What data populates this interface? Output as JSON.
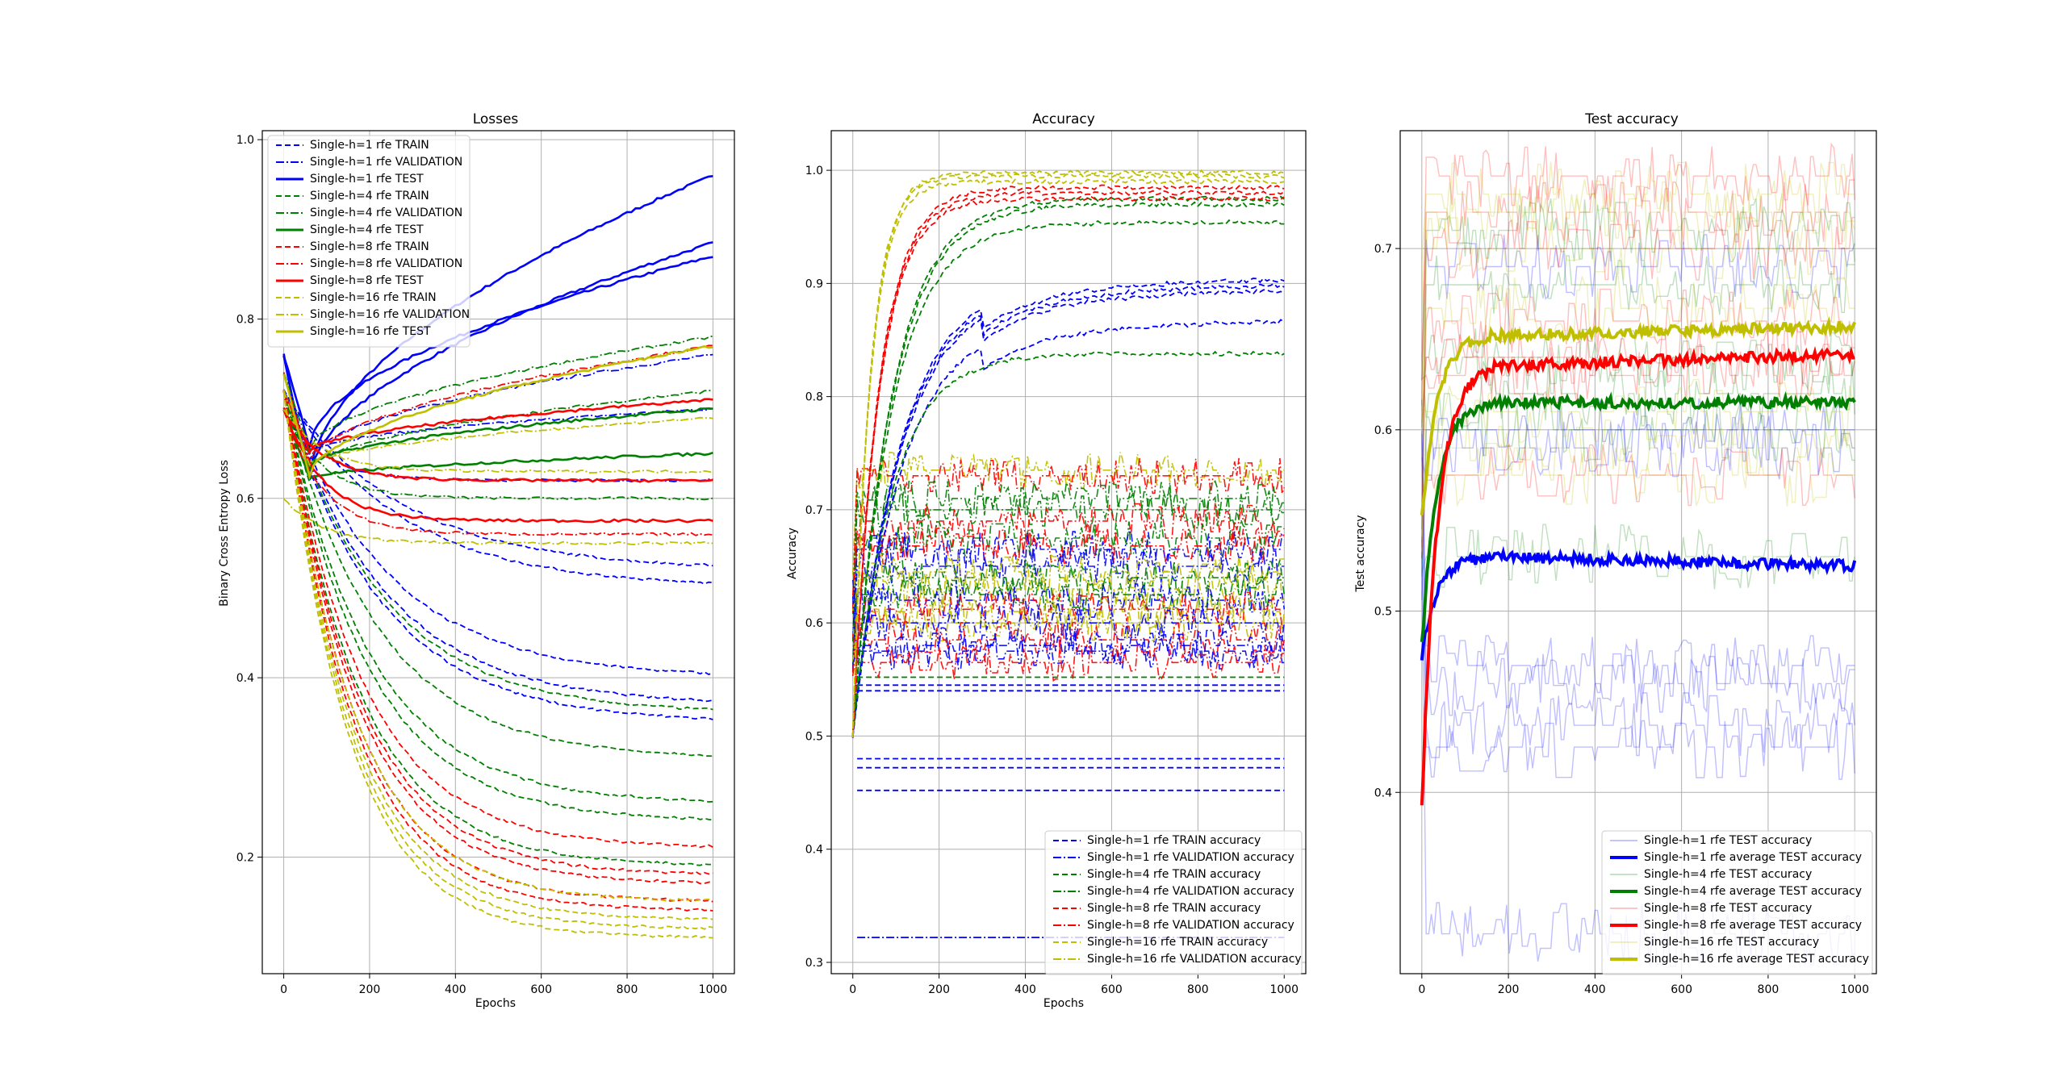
{
  "colors": {
    "h1": "#0000ff",
    "h4": "#008000",
    "h8": "#ff0000",
    "h16": "#bfbf00",
    "grid": "#b0b0b0",
    "frame": "#000000"
  },
  "chart_data": [
    {
      "type": "line",
      "title": "Losses",
      "xlabel": "Epochs",
      "ylabel": "Binary Cross Entropy Loss",
      "xlim": [
        -50,
        1050
      ],
      "ylim": [
        0.07,
        1.01
      ],
      "xticks": [
        0,
        200,
        400,
        600,
        800,
        1000
      ],
      "yticks": [
        0.2,
        0.4,
        0.6,
        0.8,
        1.0
      ],
      "xtick_labels": [
        "0",
        "200",
        "400",
        "600",
        "800",
        "1000"
      ],
      "ytick_labels": [
        "0.2",
        "0.4",
        "0.6",
        "0.8",
        "1.0"
      ],
      "grid": true,
      "legend_position": "upper-left",
      "legend": [
        "Single-h=1 rfe TRAIN",
        "Single-h=1 rfe VALIDATION",
        "Single-h=1 rfe TEST",
        "Single-h=4 rfe TRAIN",
        "Single-h=4 rfe VALIDATION",
        "Single-h=4 rfe TEST",
        "Single-h=8 rfe TRAIN",
        "Single-h=8 rfe VALIDATION",
        "Single-h=8 rfe TEST",
        "Single-h=16 rfe TRAIN",
        "Single-h=16 rfe VALIDATION",
        "Single-h=16 rfe TEST"
      ],
      "series": [
        {
          "group": "h1",
          "kind": "test",
          "start": 0.76,
          "end": 0.96
        },
        {
          "group": "h1",
          "kind": "test",
          "start": 0.76,
          "end": 0.885
        },
        {
          "group": "h1",
          "kind": "test",
          "start": 0.76,
          "end": 0.87
        },
        {
          "group": "h1",
          "kind": "val",
          "start": 0.74,
          "end": 0.76
        },
        {
          "group": "h1",
          "kind": "val",
          "start": 0.72,
          "end": 0.7
        },
        {
          "group": "h1",
          "kind": "val",
          "start": 0.7,
          "end": 0.62
        },
        {
          "group": "h1",
          "kind": "train",
          "start": 0.72,
          "end": 0.52
        },
        {
          "group": "h1",
          "kind": "train",
          "start": 0.72,
          "end": 0.5
        },
        {
          "group": "h1",
          "kind": "train",
          "start": 0.72,
          "end": 0.4
        },
        {
          "group": "h1",
          "kind": "train",
          "start": 0.72,
          "end": 0.37
        },
        {
          "group": "h1",
          "kind": "train",
          "start": 0.72,
          "end": 0.35
        },
        {
          "group": "h4",
          "kind": "val",
          "start": 0.74,
          "end": 0.78
        },
        {
          "group": "h4",
          "kind": "val",
          "start": 0.72,
          "end": 0.72
        },
        {
          "group": "h4",
          "kind": "test",
          "start": 0.72,
          "end": 0.7
        },
        {
          "group": "h4",
          "kind": "test",
          "start": 0.7,
          "end": 0.65
        },
        {
          "group": "h4",
          "kind": "val",
          "start": 0.7,
          "end": 0.6
        },
        {
          "group": "h4",
          "kind": "train",
          "start": 0.72,
          "end": 0.36
        },
        {
          "group": "h4",
          "kind": "train",
          "start": 0.72,
          "end": 0.31
        },
        {
          "group": "h4",
          "kind": "train",
          "start": 0.72,
          "end": 0.26
        },
        {
          "group": "h4",
          "kind": "train",
          "start": 0.72,
          "end": 0.24
        },
        {
          "group": "h4",
          "kind": "train",
          "start": 0.72,
          "end": 0.19
        },
        {
          "group": "h8",
          "kind": "val",
          "start": 0.74,
          "end": 0.77
        },
        {
          "group": "h8",
          "kind": "test",
          "start": 0.72,
          "end": 0.71
        },
        {
          "group": "h8",
          "kind": "test",
          "start": 0.7,
          "end": 0.62
        },
        {
          "group": "h8",
          "kind": "test",
          "start": 0.7,
          "end": 0.575
        },
        {
          "group": "h8",
          "kind": "val",
          "start": 0.7,
          "end": 0.56
        },
        {
          "group": "h8",
          "kind": "train",
          "start": 0.72,
          "end": 0.21
        },
        {
          "group": "h8",
          "kind": "train",
          "start": 0.72,
          "end": 0.18
        },
        {
          "group": "h8",
          "kind": "train",
          "start": 0.72,
          "end": 0.17
        },
        {
          "group": "h8",
          "kind": "train",
          "start": 0.72,
          "end": 0.15
        },
        {
          "group": "h8",
          "kind": "train",
          "start": 0.72,
          "end": 0.14
        },
        {
          "group": "h16",
          "kind": "test",
          "start": 0.74,
          "end": 0.77
        },
        {
          "group": "h16",
          "kind": "val",
          "start": 0.72,
          "end": 0.69
        },
        {
          "group": "h16",
          "kind": "val",
          "start": 0.7,
          "end": 0.63
        },
        {
          "group": "h16",
          "kind": "val",
          "start": 0.6,
          "end": 0.55
        },
        {
          "group": "h16",
          "kind": "train",
          "start": 0.72,
          "end": 0.15
        },
        {
          "group": "h16",
          "kind": "train",
          "start": 0.72,
          "end": 0.13
        },
        {
          "group": "h16",
          "kind": "train",
          "start": 0.72,
          "end": 0.12
        },
        {
          "group": "h16",
          "kind": "train",
          "start": 0.72,
          "end": 0.11
        }
      ]
    },
    {
      "type": "line",
      "title": "Accuracy",
      "xlabel": "Epochs",
      "ylabel": "Accuracy",
      "xlim": [
        -50,
        1050
      ],
      "ylim": [
        0.29,
        1.035
      ],
      "xticks": [
        0,
        200,
        400,
        600,
        800,
        1000
      ],
      "yticks": [
        0.3,
        0.4,
        0.5,
        0.6,
        0.7,
        0.8,
        0.9,
        1.0
      ],
      "xtick_labels": [
        "0",
        "200",
        "400",
        "600",
        "800",
        "1000"
      ],
      "ytick_labels": [
        "0.3",
        "0.4",
        "0.5",
        "0.6",
        "0.7",
        "0.8",
        "0.9",
        "1.0"
      ],
      "grid": true,
      "legend_position": "lower-right",
      "legend": [
        "Single-h=1 rfe TRAIN accuracy",
        "Single-h=1 rfe VALIDATION accuracy",
        "Single-h=4 rfe TRAIN accuracy",
        "Single-h=4 rfe VALIDATION accuracy",
        "Single-h=8 rfe TRAIN accuracy",
        "Single-h=8 rfe VALIDATION accuracy",
        "Single-h=16 rfe TRAIN accuracy",
        "Single-h=16 rfe VALIDATION accuracy"
      ],
      "train_series": [
        {
          "group": "h1",
          "end": 0.905
        },
        {
          "group": "h1",
          "end": 0.9
        },
        {
          "group": "h1",
          "end": 0.895
        },
        {
          "group": "h1",
          "end": 0.868
        },
        {
          "group": "h4",
          "end": 0.954
        },
        {
          "group": "h4",
          "end": 0.838
        },
        {
          "group": "h4",
          "end": 0.97
        },
        {
          "group": "h4",
          "end": 0.975
        },
        {
          "group": "h8",
          "end": 0.98
        },
        {
          "group": "h8",
          "end": 0.975
        },
        {
          "group": "h8",
          "end": 0.985
        },
        {
          "group": "h16",
          "end": 0.995
        },
        {
          "group": "h16",
          "end": 0.99
        },
        {
          "group": "h16",
          "end": 0.998
        }
      ],
      "flat_series": [
        {
          "group": "h1",
          "value": 0.545
        },
        {
          "group": "h1",
          "value": 0.54
        },
        {
          "group": "h1",
          "value": 0.48
        },
        {
          "group": "h1",
          "value": 0.472
        },
        {
          "group": "h1",
          "value": 0.452
        },
        {
          "group": "h1",
          "value": 0.322
        },
        {
          "group": "h4",
          "value": 0.552
        }
      ],
      "val_series": [
        {
          "group": "h16",
          "value": 0.735
        },
        {
          "group": "h8",
          "value": 0.73
        },
        {
          "group": "h4",
          "value": 0.71
        },
        {
          "group": "h4",
          "value": 0.7
        },
        {
          "group": "h8",
          "value": 0.69
        },
        {
          "group": "h4",
          "value": 0.675
        },
        {
          "group": "h1",
          "value": 0.665
        },
        {
          "group": "h8",
          "value": 0.668
        },
        {
          "group": "h1",
          "value": 0.65
        },
        {
          "group": "h16",
          "value": 0.645
        },
        {
          "group": "h4",
          "value": 0.64
        },
        {
          "group": "h16",
          "value": 0.63
        },
        {
          "group": "h4",
          "value": 0.625
        },
        {
          "group": "h1",
          "value": 0.62
        },
        {
          "group": "h16",
          "value": 0.61
        },
        {
          "group": "h8",
          "value": 0.612
        },
        {
          "group": "h16",
          "value": 0.6
        },
        {
          "group": "h1",
          "value": 0.6
        },
        {
          "group": "h8",
          "value": 0.585
        },
        {
          "group": "h1",
          "value": 0.58
        },
        {
          "group": "h1",
          "value": 0.575
        },
        {
          "group": "h8",
          "value": 0.565
        }
      ]
    },
    {
      "type": "line",
      "title": "Test accuracy",
      "xlabel": "",
      "ylabel": "Test accuracy",
      "xlim": [
        -50,
        1050
      ],
      "ylim": [
        0.3,
        0.765
      ],
      "xticks": [
        0,
        200,
        400,
        600,
        800,
        1000
      ],
      "yticks": [
        0.4,
        0.5,
        0.6,
        0.7
      ],
      "xtick_labels": [
        "0",
        "200",
        "400",
        "600",
        "800",
        "1000"
      ],
      "ytick_labels": [
        "0.4",
        "0.5",
        "0.6",
        "0.7"
      ],
      "grid": true,
      "legend_position": "lower-right",
      "legend": [
        "Single-h=1 rfe TEST accuracy",
        "Single-h=1 rfe average TEST accuracy",
        "Single-h=4 rfe TEST accuracy",
        "Single-h=4 rfe average TEST accuracy",
        "Single-h=8 rfe TEST accuracy",
        "Single-h=8 rfe average TEST accuracy",
        "Single-h=16 rfe TEST accuracy",
        "Single-h=16 rfe average TEST accuracy"
      ],
      "average_series": [
        {
          "group": "h1",
          "start": 0.475,
          "plateau": 0.53,
          "end": 0.525
        },
        {
          "group": "h4",
          "start": 0.48,
          "plateau": 0.615,
          "end": 0.615
        },
        {
          "group": "h8",
          "start": 0.39,
          "plateau": 0.635,
          "end": 0.642
        },
        {
          "group": "h16",
          "start": 0.55,
          "plateau": 0.652,
          "end": 0.657
        }
      ],
      "individual_series": [
        {
          "group": "h1",
          "value": 0.47
        },
        {
          "group": "h1",
          "value": 0.46
        },
        {
          "group": "h1",
          "value": 0.437
        },
        {
          "group": "h1",
          "value": 0.425
        },
        {
          "group": "h1",
          "value": 0.322
        },
        {
          "group": "h1",
          "value": 0.59
        },
        {
          "group": "h1",
          "value": 0.6
        },
        {
          "group": "h1",
          "value": 0.69
        },
        {
          "group": "h4",
          "value": 0.62
        },
        {
          "group": "h4",
          "value": 0.6
        },
        {
          "group": "h4",
          "value": 0.64
        },
        {
          "group": "h4",
          "value": 0.71
        },
        {
          "group": "h4",
          "value": 0.53
        },
        {
          "group": "h4",
          "value": 0.68
        },
        {
          "group": "h8",
          "value": 0.74
        },
        {
          "group": "h8",
          "value": 0.72
        },
        {
          "group": "h8",
          "value": 0.7
        },
        {
          "group": "h8",
          "value": 0.66
        },
        {
          "group": "h8",
          "value": 0.64
        },
        {
          "group": "h8",
          "value": 0.63
        },
        {
          "group": "h8",
          "value": 0.575
        },
        {
          "group": "h16",
          "value": 0.73
        },
        {
          "group": "h16",
          "value": 0.72
        },
        {
          "group": "h16",
          "value": 0.7
        },
        {
          "group": "h16",
          "value": 0.667
        },
        {
          "group": "h16",
          "value": 0.61
        },
        {
          "group": "h16",
          "value": 0.59
        },
        {
          "group": "h16",
          "value": 0.575
        }
      ]
    }
  ]
}
